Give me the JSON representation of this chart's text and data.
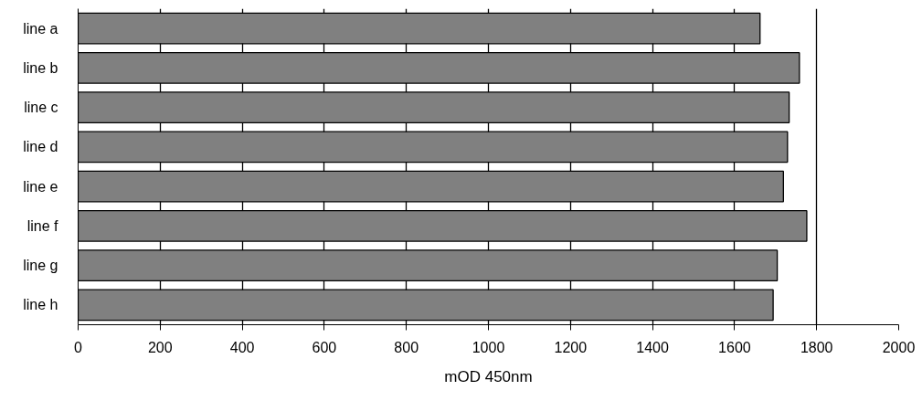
{
  "chart_data": {
    "type": "bar",
    "orientation": "horizontal",
    "xlabel": "mOD 450nm",
    "categories": [
      "line a",
      "line b",
      "line c",
      "line d",
      "line e",
      "line f",
      "line g",
      "line h"
    ],
    "values": [
      1662,
      1758,
      1733,
      1729,
      1719,
      1776,
      1704,
      1694
    ],
    "color": "#808080",
    "xlim": [
      0,
      2000
    ],
    "xticks": [
      0,
      200,
      400,
      600,
      800,
      1000,
      1200,
      1400,
      1600,
      1800,
      2000
    ],
    "grid": "x"
  }
}
